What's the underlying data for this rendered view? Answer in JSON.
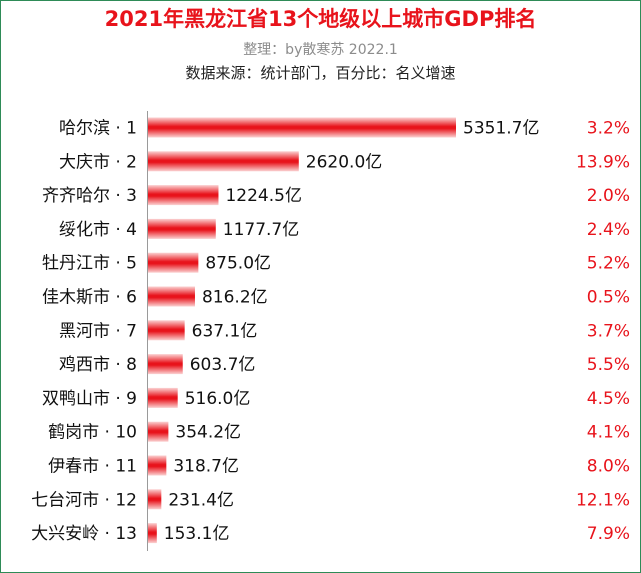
{
  "header": {
    "title": "2021年黑龙江省13个地级以上城市GDP排名",
    "subtitle": "整理：by散寒苏  2022.1",
    "source": "数据来源：统计部门，百分比：名义增速"
  },
  "colors": {
    "bar": "#e8131b",
    "growth_text": "#e8131b",
    "title": "#e8131b"
  },
  "chart_data": {
    "type": "bar",
    "orientation": "horizontal",
    "title": "2021年黑龙江省13个地级以上城市GDP排名",
    "categories": [
      "哈尔滨 · 1",
      "大庆市 · 2",
      "齐齐哈尔 · 3",
      "绥化市 · 4",
      "牡丹江市 · 5",
      "佳木斯市 · 6",
      "黑河市 · 7",
      "鸡西市 · 8",
      "双鸭山市 · 9",
      "鹤岗市 · 10",
      "伊春市 · 11",
      "七台河市 · 12",
      "大兴安岭 · 13"
    ],
    "values": [
      5351.7,
      2620.0,
      1224.5,
      1177.7,
      875.0,
      816.2,
      637.1,
      603.7,
      516.0,
      354.2,
      318.7,
      231.4,
      153.1
    ],
    "value_labels": [
      "5351.7亿",
      "2620.0亿",
      "1224.5亿",
      "1177.7亿",
      "875.0亿",
      "816.2亿",
      "637.1亿",
      "603.7亿",
      "516.0亿",
      "354.2亿",
      "318.7亿",
      "231.4亿",
      "153.1亿"
    ],
    "growth_labels": [
      "3.2%",
      "13.9%",
      "2.0%",
      "2.4%",
      "5.2%",
      "0.5%",
      "3.7%",
      "5.5%",
      "4.5%",
      "4.1%",
      "8.0%",
      "12.1%",
      "7.9%"
    ],
    "growth": [
      3.2,
      13.9,
      2.0,
      2.4,
      5.2,
      0.5,
      3.7,
      5.5,
      4.5,
      4.1,
      8.0,
      12.1,
      7.9
    ],
    "grid": false,
    "legend": "none"
  }
}
